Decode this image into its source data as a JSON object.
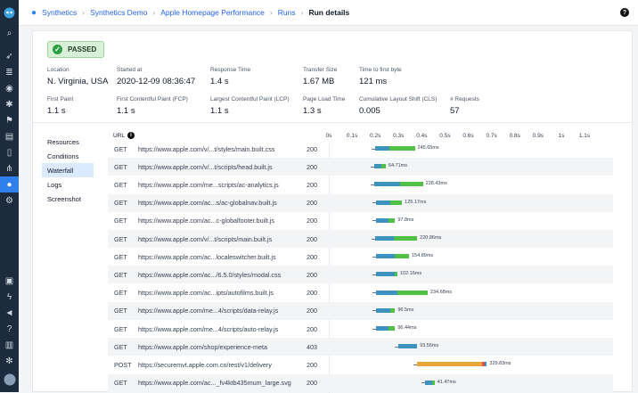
{
  "breadcrumbs": [
    "Synthetics",
    "Synthetics Demo",
    "Apple Homepage Performance",
    "Runs",
    "Run details"
  ],
  "status_badge": "PASSED",
  "metrics": [
    {
      "label": "Location",
      "value": "N. Virginia, USA"
    },
    {
      "label": "Started at",
      "value": "2020-12-09 08:36:47"
    },
    {
      "label": "Response Time",
      "value": "1.4 s"
    },
    {
      "label": "Transfer Size",
      "value": "1.67 MB"
    },
    {
      "label": "Time to first byte",
      "value": "121 ms"
    },
    {
      "label": "First Paint",
      "value": "1.1 s"
    },
    {
      "label": "First Contentful Paint (FCP)",
      "value": "1.1 s"
    },
    {
      "label": "Largest Contentful Paint (LCP)",
      "value": "1.1 s"
    },
    {
      "label": "Page Load Time",
      "value": "1.3 s"
    },
    {
      "label": "Cumulative Layout Shift (CLS)",
      "value": "0.005"
    },
    {
      "label": "# Requests",
      "value": "57"
    }
  ],
  "tabs": [
    "Resources",
    "Conditions",
    "Waterfall",
    "Logs",
    "Screenshot"
  ],
  "active_tab": "Waterfall",
  "url_header": "URL",
  "timeline_ticks": [
    "0s",
    "0.1s",
    "0.2s",
    "0.3s",
    "0.4s",
    "0.5s",
    "0.6s",
    "0.7s",
    "0.8s",
    "0.9s",
    "1s",
    "1.1s"
  ],
  "colors": {
    "wait": "#3d93c0",
    "receive": "#52c047",
    "blocked": "#7c3aed",
    "send": "#e8a63a",
    "accent": "#2f80ed"
  },
  "requests": [
    {
      "method": "GET",
      "url": "https://www.apple.com/v/...t/styles/main.built.css",
      "status": "200",
      "start": 0.2,
      "wait": 0.06,
      "receive": 0.11,
      "duration": "245.65ms"
    },
    {
      "method": "GET",
      "url": "https://www.apple.com/v/...t/scripts/head.built.js",
      "status": "200",
      "start": 0.195,
      "wait": 0.03,
      "receive": 0.02,
      "duration": "64.71ms"
    },
    {
      "method": "GET",
      "url": "https://www.apple.com/me...scripts/ac-analytics.js",
      "status": "200",
      "start": 0.195,
      "wait": 0.11,
      "receive": 0.1,
      "duration": "228.43ms"
    },
    {
      "method": "GET",
      "url": "https://www.apple.com/ac...s/ac-globalnav.built.js",
      "status": "200",
      "start": 0.205,
      "wait": 0.06,
      "receive": 0.05,
      "duration": "125.17ms"
    },
    {
      "method": "GET",
      "url": "https://www.apple.com/ac...c-globalfooter.built.js",
      "status": "200",
      "start": 0.205,
      "wait": 0.05,
      "receive": 0.03,
      "duration": "97.8ms"
    },
    {
      "method": "GET",
      "url": "https://www.apple.com/v/...t/scripts/main.built.js",
      "status": "200",
      "start": 0.2,
      "wait": 0.08,
      "receive": 0.1,
      "duration": "220.86ms"
    },
    {
      "method": "GET",
      "url": "https://www.apple.com/ac...localeswitcher.built.js",
      "status": "200",
      "start": 0.205,
      "wait": 0.08,
      "receive": 0.06,
      "duration": "154.89ms"
    },
    {
      "method": "GET",
      "url": "https://www.apple.com/ac.../6.5.0/styles/modal.css",
      "status": "200",
      "start": 0.205,
      "wait": 0.08,
      "receive": 0.01,
      "duration": "102.16ms"
    },
    {
      "method": "GET",
      "url": "https://www.apple.com/ac...ipts/autofilms.built.js",
      "status": "200",
      "start": 0.205,
      "wait": 0.09,
      "receive": 0.13,
      "duration": "234.68ms"
    },
    {
      "method": "GET",
      "url": "https://www.apple.com/me...4/scripts/data-relay.js",
      "status": "200",
      "start": 0.205,
      "wait": 0.06,
      "receive": 0.02,
      "duration": "96.5ms"
    },
    {
      "method": "GET",
      "url": "https://www.apple.com/me...4/scripts/auto-relay.js",
      "status": "200",
      "start": 0.205,
      "wait": 0.05,
      "receive": 0.03,
      "duration": "96.44ms"
    },
    {
      "method": "GET",
      "url": "https://www.apple.com/shop/experience-meta",
      "status": "403",
      "start": 0.3,
      "wait": 0.08,
      "receive": 0.0,
      "duration": "93.56ms"
    },
    {
      "method": "POST",
      "url": "https://securemvt.apple.com.cn/rest/v1/delivery",
      "status": "200",
      "start": 0.38,
      "wait": 0.0,
      "receive": 0.0,
      "send": 0.3,
      "duration": "329.83ms"
    },
    {
      "method": "GET",
      "url": "https://www.apple.com/ac..._fv4ktb435mum_large.svg",
      "status": "200",
      "start": 0.415,
      "wait": 0.03,
      "receive": 0.01,
      "duration": "41.47ms"
    }
  ]
}
